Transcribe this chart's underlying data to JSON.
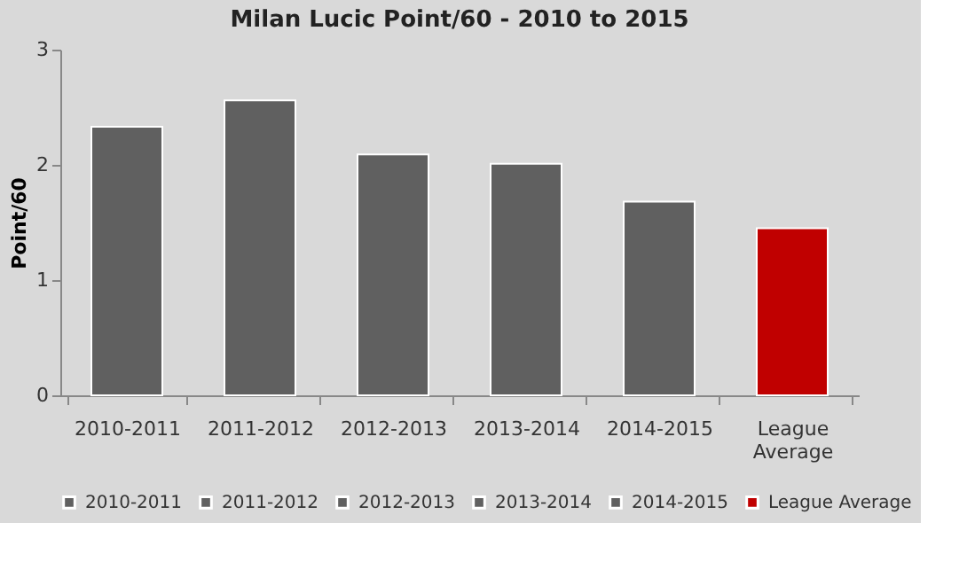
{
  "chart_data": {
    "type": "bar",
    "title": "Milan Lucic Point/60 - 2010 to 2015",
    "ylabel": "Point/60",
    "categories": [
      "2010-2011",
      "2011-2012",
      "2012-2013",
      "2013-2014",
      "2014-2015",
      "League Average"
    ],
    "series": [
      {
        "name": "2010-2011",
        "color": "#606060",
        "values": [
          2.33,
          null,
          null,
          null,
          null,
          null
        ]
      },
      {
        "name": "2011-2012",
        "color": "#606060",
        "values": [
          null,
          2.56,
          null,
          null,
          null,
          null
        ]
      },
      {
        "name": "2012-2013",
        "color": "#606060",
        "values": [
          null,
          null,
          2.09,
          null,
          null,
          null
        ]
      },
      {
        "name": "2013-2014",
        "color": "#606060",
        "values": [
          null,
          null,
          null,
          2.01,
          null,
          null
        ]
      },
      {
        "name": "2014-2015",
        "color": "#606060",
        "values": [
          null,
          null,
          null,
          null,
          1.68,
          null
        ]
      },
      {
        "name": "League Average",
        "color": "#c00000",
        "values": [
          null,
          null,
          null,
          null,
          null,
          1.45
        ]
      }
    ],
    "ylim": [
      0,
      3
    ],
    "yticks": [
      0,
      1,
      2,
      3
    ],
    "legend": "bottom"
  }
}
